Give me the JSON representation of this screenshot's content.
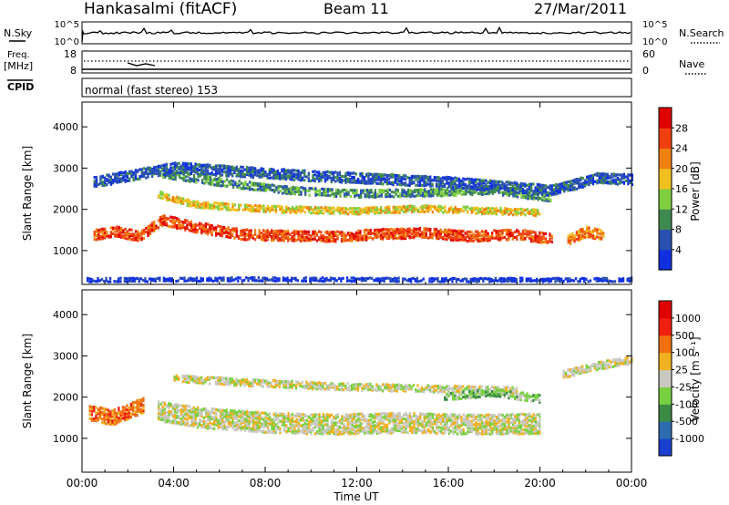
{
  "header": {
    "station": "Hankasalmi (fitACF)",
    "beam": "Beam 11",
    "date": "27/Mar/2011"
  },
  "sky_panel": {
    "left_label": "N.Sky",
    "right_label": "N.Search",
    "left_ticks": [
      "10^5",
      "10^0"
    ],
    "right_ticks": [
      "10^5",
      "10^0"
    ]
  },
  "freq_panel": {
    "left_label_1": "Freq.",
    "left_label_2": "[MHz]",
    "right_label": "Nave",
    "left_ticks": [
      "18",
      "8"
    ],
    "right_ticks": [
      "60",
      "0"
    ]
  },
  "cpid": {
    "label": "CPID",
    "program": "normal (fast stereo) 153"
  },
  "chart_data": [
    {
      "type": "heatmap",
      "quantity": "Power",
      "ylabel": "Slant Range [km]",
      "xlabel": "",
      "ylim": [
        180,
        4600
      ],
      "yticks": [
        1000,
        2000,
        3000,
        4000
      ],
      "xlim": [
        0,
        24
      ],
      "colorbar": {
        "label": "Power [dB]",
        "ticks": [
          "4",
          "8",
          "12",
          "16",
          "20",
          "24",
          "28"
        ],
        "colors": [
          "#1030e0",
          "#2a50b0",
          "#3f8a50",
          "#7fcf40",
          "#f0c020",
          "#f08010",
          "#f04010",
          "#e00000"
        ]
      },
      "echo_bands": [
        {
          "tier": 6,
          "points": [
            [
              0.5,
              1420
            ],
            [
              1.5,
              1500
            ],
            [
              2.5,
              1380
            ],
            [
              3.5,
              1780
            ],
            [
              5,
              1600
            ],
            [
              7,
              1430
            ],
            [
              9,
              1400
            ],
            [
              11,
              1380
            ],
            [
              13,
              1440
            ],
            [
              15,
              1470
            ],
            [
              17,
              1380
            ],
            [
              19,
              1440
            ],
            [
              20.5,
              1320
            ]
          ],
          "thickness": 260
        },
        {
          "tier": 4,
          "points": [
            [
              3.3,
              2400
            ],
            [
              5,
              2150
            ],
            [
              8,
              2050
            ],
            [
              12,
              2000
            ],
            [
              15,
              2060
            ],
            [
              18,
              2000
            ],
            [
              20,
              1960
            ]
          ],
          "thickness": 170
        },
        {
          "tier": 2,
          "points": [
            [
              3.5,
              2900
            ],
            [
              6,
              2700
            ],
            [
              9,
              2500
            ],
            [
              12,
              2420
            ],
            [
              15,
              2450
            ],
            [
              18,
              2500
            ],
            [
              20.5,
              2300
            ]
          ],
          "thickness": 200
        },
        {
          "tier": 1,
          "points": [
            [
              0.5,
              2700
            ],
            [
              4,
              3050
            ],
            [
              10,
              2850
            ],
            [
              16,
              2700
            ],
            [
              20.5,
              2500
            ],
            [
              22.5,
              2800
            ],
            [
              24,
              2760
            ]
          ],
          "thickness": 260
        },
        {
          "tier": 0,
          "points": [
            [
              0.2,
              330
            ],
            [
              8,
              350
            ],
            [
              16,
              330
            ],
            [
              24,
              340
            ]
          ],
          "thickness": 110
        },
        {
          "tier": 5,
          "points": [
            [
              21.2,
              1300
            ],
            [
              22,
              1500
            ],
            [
              22.8,
              1400
            ]
          ],
          "thickness": 260
        }
      ]
    },
    {
      "type": "heatmap",
      "quantity": "Velocity",
      "ylabel": "Slant Range [km]",
      "xlabel": "Time UT",
      "ylim": [
        180,
        4600
      ],
      "yticks": [
        1000,
        2000,
        3000,
        4000
      ],
      "xlim": [
        0,
        24
      ],
      "xticks": [
        "00:00",
        "04:00",
        "08:00",
        "12:00",
        "16:00",
        "20:00",
        "00:00"
      ],
      "colorbar": {
        "label": "Velocity [m s⁻¹]",
        "ticks": [
          "1000",
          "500",
          "100",
          "25",
          "-25",
          "-100",
          "-500",
          "-1000"
        ],
        "colors": [
          "#1a3fd0",
          "#2d6bb0",
          "#3b8a45",
          "#78d040",
          "#c8c8c0",
          "#f0b020",
          "#f07010",
          "#f02010",
          "#e00000"
        ]
      },
      "echo_bands": [
        {
          "tier": 4,
          "points": [
            [
              3.3,
              1700
            ],
            [
              5,
              1550
            ],
            [
              8,
              1420
            ],
            [
              11,
              1380
            ],
            [
              14,
              1420
            ],
            [
              17,
              1380
            ],
            [
              20,
              1400
            ]
          ],
          "thickness": 500
        },
        {
          "tier": 4,
          "points": [
            [
              4,
              2500
            ],
            [
              7,
              2400
            ],
            [
              11,
              2300
            ],
            [
              15,
              2250
            ],
            [
              19,
              2200
            ]
          ],
          "thickness": 180
        },
        {
          "tier": 3,
          "points": [
            [
              15.8,
              2050
            ],
            [
              18,
              2150
            ],
            [
              20,
              2000
            ]
          ],
          "thickness": 200
        },
        {
          "tier": 6,
          "points": [
            [
              0.3,
              1650
            ],
            [
              1.3,
              1550
            ],
            [
              2.7,
              1850
            ]
          ],
          "thickness": 380
        },
        {
          "tier": 4,
          "points": [
            [
              21,
              2600
            ],
            [
              22.5,
              2800
            ],
            [
              24,
              2950
            ]
          ],
          "thickness": 200
        }
      ]
    }
  ]
}
